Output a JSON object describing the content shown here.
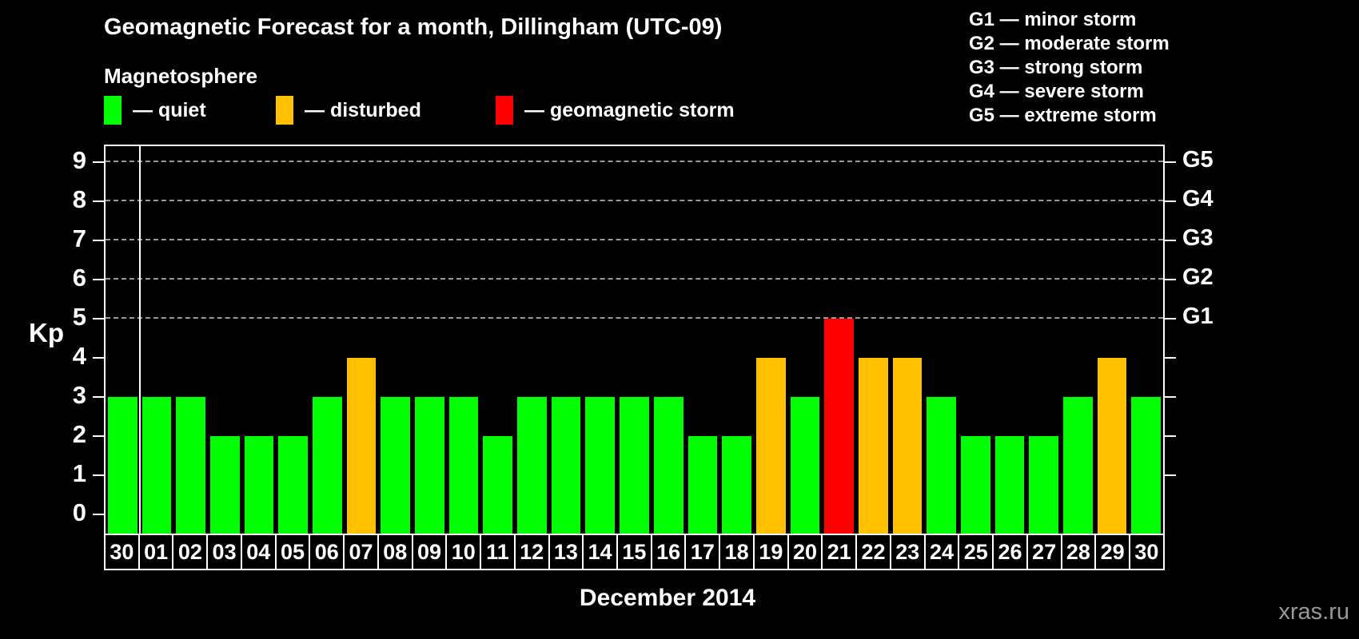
{
  "header": {
    "title": "Geomagnetic Forecast for a month, Dillingham (UTC-09)",
    "subtitle": "Magnetosphere"
  },
  "legend": {
    "items": [
      {
        "state": "quiet",
        "label": "— quiet"
      },
      {
        "state": "disturbed",
        "label": "— disturbed"
      },
      {
        "state": "storm",
        "label": "— geomagnetic storm"
      }
    ]
  },
  "g_legend": {
    "items": [
      "G1 — minor storm",
      "G2 — moderate storm",
      "G3 — strong storm",
      "G4 — severe storm",
      "G5 — extreme storm"
    ]
  },
  "colors": {
    "quiet": "#00ff00",
    "disturbed": "#ffc000",
    "storm": "#ff0000",
    "axis": "#ffffff",
    "grid": "#9a9a9a",
    "watermark": "#999999"
  },
  "axis": {
    "kp_label": "Kp",
    "y_ticks": [
      0,
      1,
      2,
      3,
      4,
      5,
      6,
      7,
      8,
      9
    ],
    "right_labels": [
      {
        "value": 5,
        "label": "G1"
      },
      {
        "value": 6,
        "label": "G2"
      },
      {
        "value": 7,
        "label": "G3"
      },
      {
        "value": 8,
        "label": "G4"
      },
      {
        "value": 9,
        "label": "G5"
      }
    ]
  },
  "footer": {
    "x_label": "December 2014",
    "watermark": "xras.ru"
  },
  "chart_data": {
    "type": "bar",
    "title": "Geomagnetic Forecast for a month, Dillingham (UTC-09)",
    "categories": [
      "30",
      "01",
      "02",
      "03",
      "04",
      "05",
      "06",
      "07",
      "08",
      "09",
      "10",
      "11",
      "12",
      "13",
      "14",
      "15",
      "16",
      "17",
      "18",
      "19",
      "20",
      "21",
      "22",
      "23",
      "24",
      "25",
      "26",
      "27",
      "28",
      "29",
      "30"
    ],
    "values": [
      3,
      3,
      3,
      2,
      2,
      2,
      3,
      4,
      3,
      3,
      3,
      2,
      3,
      3,
      3,
      3,
      3,
      2,
      2,
      4,
      3,
      5,
      4,
      4,
      3,
      2,
      2,
      2,
      3,
      4,
      3
    ],
    "states": [
      "quiet",
      "quiet",
      "quiet",
      "quiet",
      "quiet",
      "quiet",
      "quiet",
      "disturbed",
      "quiet",
      "quiet",
      "quiet",
      "quiet",
      "quiet",
      "quiet",
      "quiet",
      "quiet",
      "quiet",
      "quiet",
      "quiet",
      "disturbed",
      "quiet",
      "storm",
      "disturbed",
      "disturbed",
      "quiet",
      "quiet",
      "quiet",
      "quiet",
      "quiet",
      "disturbed",
      "quiet"
    ],
    "xlabel": "December 2014",
    "ylabel": "Kp",
    "ylim": [
      0,
      9.5
    ],
    "gridlines": [
      5,
      6,
      7,
      8,
      9
    ],
    "grid_style": "dashed",
    "legend_position": "top-left",
    "right_axis_labels": {
      "5": "G1",
      "6": "G2",
      "7": "G3",
      "8": "G4",
      "9": "G5"
    },
    "separator_after_index": 0
  }
}
